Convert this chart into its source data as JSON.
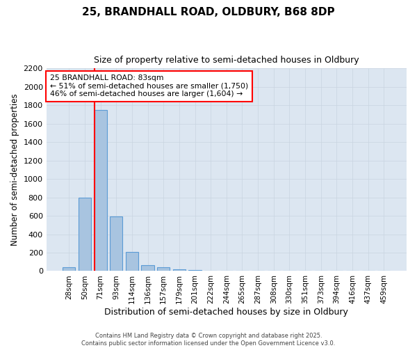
{
  "title_line1": "25, BRANDHALL ROAD, OLDBURY, B68 8DP",
  "title_line2": "Size of property relative to semi-detached houses in Oldbury",
  "xlabel": "Distribution of semi-detached houses by size in Oldbury",
  "ylabel": "Number of semi-detached properties",
  "categories": [
    "28sqm",
    "50sqm",
    "71sqm",
    "93sqm",
    "114sqm",
    "136sqm",
    "157sqm",
    "179sqm",
    "201sqm",
    "222sqm",
    "244sqm",
    "265sqm",
    "287sqm",
    "308sqm",
    "330sqm",
    "351sqm",
    "373sqm",
    "394sqm",
    "416sqm",
    "437sqm",
    "459sqm"
  ],
  "values": [
    40,
    800,
    1750,
    590,
    205,
    65,
    38,
    15,
    10,
    0,
    0,
    0,
    0,
    0,
    0,
    0,
    0,
    0,
    0,
    0,
    0
  ],
  "bar_color": "#a8c4e0",
  "bar_edge_color": "#5b9bd5",
  "red_line_index": 2,
  "annotation_text": "25 BRANDHALL ROAD: 83sqm\n← 51% of semi-detached houses are smaller (1,750)\n46% of semi-detached houses are larger (1,604) →",
  "ylim": [
    0,
    2200
  ],
  "yticks": [
    0,
    200,
    400,
    600,
    800,
    1000,
    1200,
    1400,
    1600,
    1800,
    2000,
    2200
  ],
  "grid_color": "#c8d4e0",
  "plot_bg_color": "#dce6f1",
  "footer_line1": "Contains HM Land Registry data © Crown copyright and database right 2025.",
  "footer_line2": "Contains public sector information licensed under the Open Government Licence v3.0."
}
